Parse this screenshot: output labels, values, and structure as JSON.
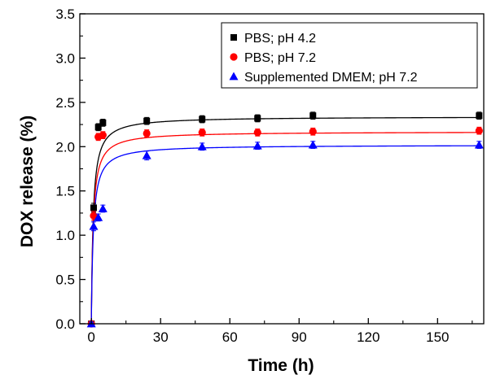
{
  "chart_data": {
    "type": "scatter",
    "title": "",
    "xlabel": "Time (h)",
    "ylabel": "DOX release (%)",
    "xlim": [
      -5,
      170
    ],
    "ylim": [
      0.0,
      3.5
    ],
    "x_ticks": [
      0,
      30,
      60,
      90,
      120,
      150
    ],
    "y_ticks": [
      0.0,
      0.5,
      1.0,
      1.5,
      2.0,
      2.5,
      3.0,
      3.5
    ],
    "x_tick_labels": [
      "0",
      "30",
      "60",
      "90",
      "120",
      "150"
    ],
    "y_tick_labels": [
      "0.0",
      "0.5",
      "1.0",
      "1.5",
      "2.0",
      "2.5",
      "3.0",
      "3.5"
    ],
    "grid": false,
    "legend_position": "top-right",
    "fit_curves": true,
    "x": [
      0,
      1,
      3,
      5,
      24,
      48,
      72,
      96,
      168
    ],
    "series": [
      {
        "name": "PBS; pH 4.2",
        "marker": "square",
        "color": "#000000",
        "values": [
          0.0,
          1.31,
          2.22,
          2.27,
          2.29,
          2.31,
          2.32,
          2.35,
          2.35
        ],
        "errors": [
          0.02,
          0.05,
          0.04,
          0.04,
          0.04,
          0.04,
          0.04,
          0.04,
          0.04
        ],
        "fit_plateau": 2.34
      },
      {
        "name": "PBS; pH 7.2",
        "marker": "circle",
        "color": "#ff0000",
        "values": [
          0.0,
          1.22,
          2.11,
          2.13,
          2.15,
          2.16,
          2.16,
          2.17,
          2.18
        ],
        "errors": [
          0.02,
          0.05,
          0.04,
          0.04,
          0.04,
          0.04,
          0.04,
          0.04,
          0.04
        ],
        "fit_plateau": 2.17
      },
      {
        "name": "Supplemented DMEM; pH 7.2",
        "marker": "triangle",
        "color": "#0000ff",
        "values": [
          0.0,
          1.1,
          1.2,
          1.3,
          1.9,
          2.0,
          2.01,
          2.02,
          2.02
        ],
        "errors": [
          0.02,
          0.05,
          0.04,
          0.04,
          0.05,
          0.04,
          0.04,
          0.04,
          0.04
        ],
        "fit_plateau": 2.02
      }
    ]
  }
}
